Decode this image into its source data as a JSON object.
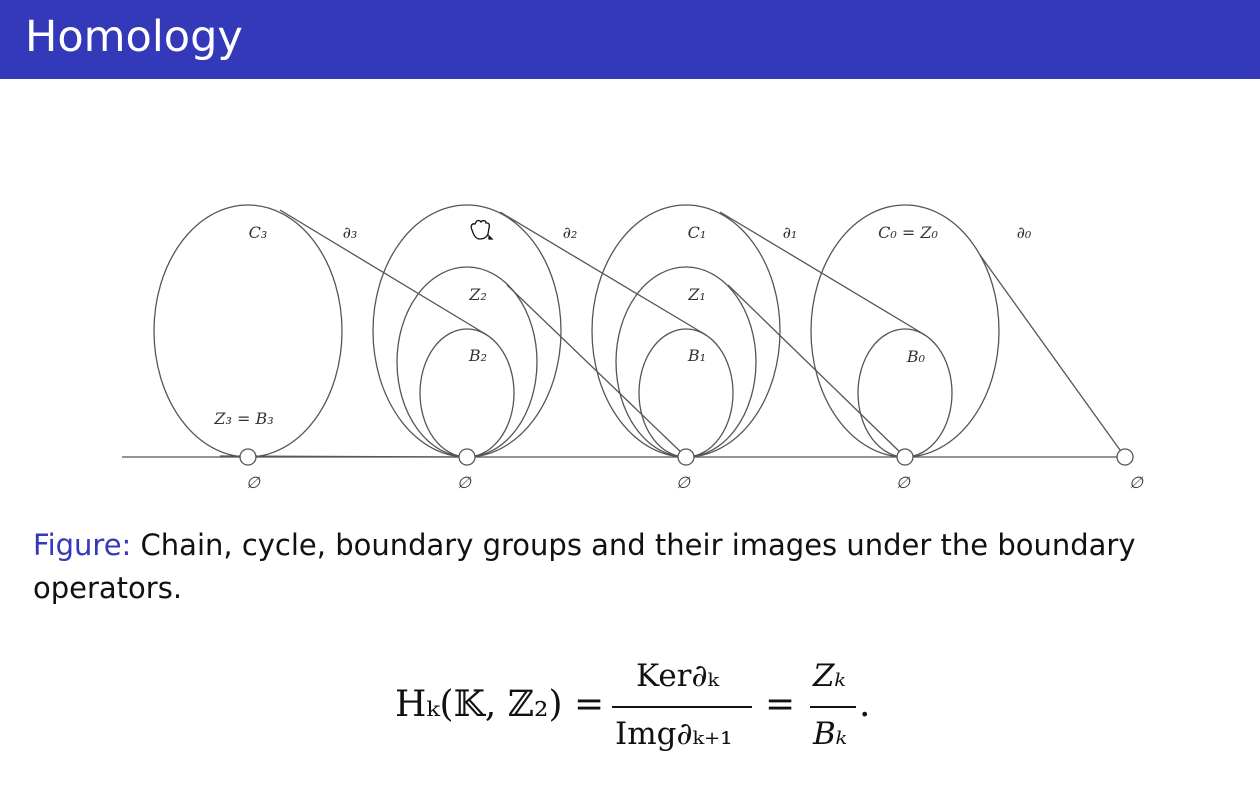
{
  "header": {
    "title": "Homology",
    "background": "#3339b8"
  },
  "figure": {
    "labels": {
      "C3": "C₃",
      "d3": "∂₃",
      "Z2": "Z₂",
      "B2": "B₂",
      "d2": "∂₂",
      "C1": "C₁",
      "d1": "∂₁",
      "Z1": "Z₁",
      "B1": "B₁",
      "C0Z0": "C₀ = Z₀",
      "d0": "∂₀",
      "B0": "B₀",
      "Z3B3": "Z₃ = B₃",
      "empty": "∅"
    }
  },
  "caption": {
    "label": "Figure:",
    "text": " Chain, cycle, boundary groups and their images under the boundary operators."
  },
  "formula": {
    "lhs": "Hₖ(𝕂, ℤ₂) =",
    "num1": "Ker∂ₖ",
    "den1": "Img∂ₖ₊₁",
    "eq": "=",
    "num2": "Zₖ",
    "den2": "Bₖ",
    "end": "."
  }
}
